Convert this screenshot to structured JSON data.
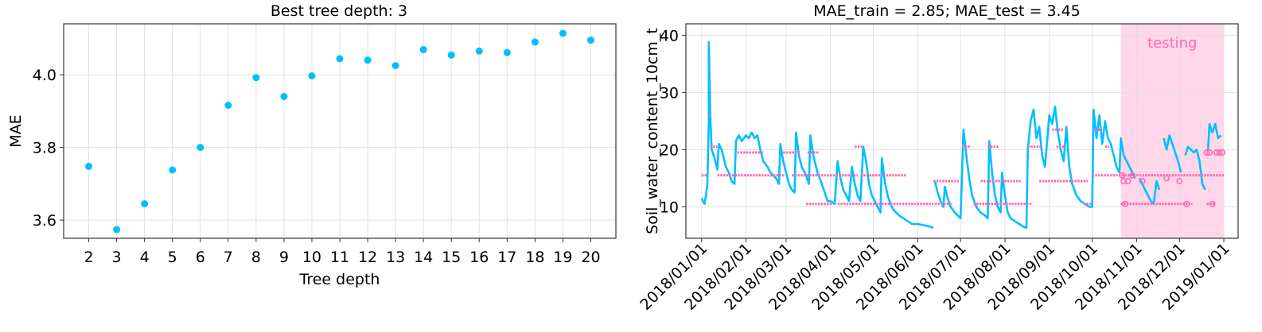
{
  "chart_data": [
    {
      "type": "scatter",
      "title": "Best tree depth: 3",
      "xlabel": "Tree depth",
      "ylabel": "MAE",
      "xlim": [
        1.1,
        20.9
      ],
      "ylim": [
        3.55,
        4.14
      ],
      "xticks": [
        2,
        3,
        4,
        5,
        6,
        7,
        8,
        9,
        10,
        11,
        12,
        13,
        14,
        15,
        16,
        17,
        18,
        19,
        20
      ],
      "yticks": [
        3.6,
        3.8,
        4.0
      ],
      "ytick_labels": [
        "3.6",
        "3.8",
        "4.0"
      ],
      "grid": true,
      "marker_color": "#00bfff",
      "series": [
        {
          "x": [
            2,
            3,
            4,
            5,
            6,
            7,
            8,
            9,
            10,
            11,
            12,
            13,
            14,
            15,
            16,
            17,
            18,
            19,
            20
          ],
          "y": [
            3.748,
            3.574,
            3.645,
            3.738,
            3.8,
            3.916,
            3.992,
            3.94,
            3.997,
            4.044,
            4.04,
            4.025,
            4.069,
            4.054,
            4.065,
            4.061,
            4.09,
            4.114,
            4.095
          ]
        }
      ]
    },
    {
      "type": "line",
      "title": "MAE_train = 2.85; MAE_test = 3.45",
      "xlabel": "",
      "ylabel": "Soil_water_content_10cm_t",
      "xlim": [
        "2017-12-21",
        "2019-01-11"
      ],
      "ylim": [
        4.5,
        42
      ],
      "yticks": [
        10,
        20,
        30,
        40
      ],
      "ytick_labels": [
        "10",
        "20",
        "30",
        "40"
      ],
      "xticks": [
        "2018-01-01",
        "2018-02-01",
        "2018-03-01",
        "2018-04-01",
        "2018-05-01",
        "2018-06-01",
        "2018-07-01",
        "2018-08-01",
        "2018-09-01",
        "2018-10-01",
        "2018-11-01",
        "2018-12-01",
        "2019-01-01"
      ],
      "xtick_labels": [
        "2018/01/01",
        "2018/02/01",
        "2018/03/01",
        "2018/04/01",
        "2018/05/01",
        "2018/06/01",
        "2018/07/01",
        "2018/08/01",
        "2018/09/01",
        "2018/10/01",
        "2018/11/01",
        "2018/12/01",
        "2019/01/01"
      ],
      "grid": true,
      "observed_color": "#00bfff",
      "predicted_color": "#ff69b4",
      "testing_region": {
        "start": "2018-10-21",
        "end": "2019-01-01",
        "label": "testing",
        "color": "#ffb6d5"
      },
      "observed_segments": [
        [
          [
            "2018-01-01",
            11.5
          ],
          [
            "2018-01-03",
            10.5
          ],
          [
            "2018-01-04",
            12
          ],
          [
            "2018-01-05",
            14
          ],
          [
            "2018-01-06",
            25
          ],
          [
            "2018-01-06",
            38.8
          ],
          [
            "2018-01-07",
            26
          ],
          [
            "2018-01-08",
            20
          ],
          [
            "2018-01-10",
            18.5
          ],
          [
            "2018-01-12",
            16.5
          ],
          [
            "2018-01-13",
            21
          ],
          [
            "2018-01-15",
            20
          ],
          [
            "2018-01-18",
            17
          ],
          [
            "2018-01-20",
            16
          ],
          [
            "2018-01-22",
            14.5
          ],
          [
            "2018-01-24",
            14
          ],
          [
            "2018-01-25",
            21.5
          ],
          [
            "2018-01-27",
            22.5
          ],
          [
            "2018-01-29",
            21.5
          ],
          [
            "2018-02-01",
            22.5
          ],
          [
            "2018-02-03",
            22
          ],
          [
            "2018-02-05",
            23
          ],
          [
            "2018-02-07",
            22
          ],
          [
            "2018-02-09",
            22.5
          ],
          [
            "2018-02-11",
            20
          ],
          [
            "2018-02-13",
            18
          ],
          [
            "2018-02-16",
            17
          ],
          [
            "2018-02-18",
            16
          ],
          [
            "2018-02-20",
            15.5
          ],
          [
            "2018-02-22",
            15
          ],
          [
            "2018-02-24",
            14
          ],
          [
            "2018-02-25",
            21
          ],
          [
            "2018-02-27",
            18
          ],
          [
            "2018-03-01",
            16
          ],
          [
            "2018-03-03",
            14
          ],
          [
            "2018-03-05",
            13
          ],
          [
            "2018-03-07",
            12.5
          ],
          [
            "2018-03-08",
            23
          ],
          [
            "2018-03-10",
            19
          ],
          [
            "2018-03-12",
            17
          ],
          [
            "2018-03-15",
            15.5
          ],
          [
            "2018-03-17",
            14
          ],
          [
            "2018-03-18",
            22.5
          ],
          [
            "2018-03-20",
            19
          ],
          [
            "2018-03-23",
            16
          ],
          [
            "2018-03-26",
            14
          ],
          [
            "2018-03-28",
            12.5
          ],
          [
            "2018-03-30",
            11
          ],
          [
            "2018-04-01",
            11
          ],
          [
            "2018-04-04",
            10.5
          ],
          [
            "2018-04-06",
            18
          ],
          [
            "2018-04-08",
            15
          ],
          [
            "2018-04-10",
            13
          ],
          [
            "2018-04-12",
            12
          ],
          [
            "2018-04-14",
            11
          ],
          [
            "2018-04-16",
            17
          ],
          [
            "2018-04-18",
            14
          ],
          [
            "2018-04-20",
            12
          ],
          [
            "2018-04-22",
            11
          ],
          [
            "2018-04-24",
            20.5
          ],
          [
            "2018-04-26",
            18
          ],
          [
            "2018-04-28",
            14
          ],
          [
            "2018-04-30",
            12
          ],
          [
            "2018-05-02",
            11
          ],
          [
            "2018-05-04",
            10
          ],
          [
            "2018-05-06",
            9
          ],
          [
            "2018-05-07",
            18.5
          ],
          [
            "2018-05-09",
            14.5
          ],
          [
            "2018-05-11",
            12
          ],
          [
            "2018-05-13",
            10.5
          ],
          [
            "2018-05-15",
            9.5
          ],
          [
            "2018-05-17",
            9
          ],
          [
            "2018-05-19",
            8.5
          ],
          [
            "2018-05-22",
            8
          ],
          [
            "2018-05-25",
            7.5
          ],
          [
            "2018-05-28",
            7
          ],
          [
            "2018-06-01",
            7
          ],
          [
            "2018-06-05",
            6.8
          ],
          [
            "2018-06-10",
            6.5
          ],
          [
            "2018-06-12",
            6.3
          ]
        ],
        [
          [
            "2018-06-13",
            14.5
          ],
          [
            "2018-06-15",
            12.5
          ],
          [
            "2018-06-17",
            11
          ],
          [
            "2018-06-19",
            10
          ],
          [
            "2018-06-20",
            13.5
          ],
          [
            "2018-06-22",
            11.5
          ],
          [
            "2018-06-24",
            10
          ],
          [
            "2018-06-27",
            9
          ],
          [
            "2018-06-29",
            8.5
          ],
          [
            "2018-07-01",
            8
          ],
          [
            "2018-07-03",
            23.5
          ],
          [
            "2018-07-05",
            19
          ],
          [
            "2018-07-07",
            15
          ],
          [
            "2018-07-09",
            12
          ],
          [
            "2018-07-12",
            10
          ],
          [
            "2018-07-15",
            9
          ],
          [
            "2018-07-18",
            8.5
          ],
          [
            "2018-07-20",
            8
          ],
          [
            "2018-07-21",
            21.5
          ],
          [
            "2018-07-23",
            16
          ],
          [
            "2018-07-25",
            12
          ],
          [
            "2018-07-27",
            10
          ],
          [
            "2018-07-29",
            9
          ],
          [
            "2018-07-30",
            16
          ],
          [
            "2018-08-01",
            12
          ],
          [
            "2018-08-03",
            9
          ],
          [
            "2018-08-05",
            8
          ],
          [
            "2018-08-08",
            7.5
          ],
          [
            "2018-08-11",
            7
          ],
          [
            "2018-08-14",
            6.5
          ],
          [
            "2018-08-16",
            6.3
          ],
          [
            "2018-08-17",
            20
          ],
          [
            "2018-08-19",
            25
          ],
          [
            "2018-08-21",
            27
          ],
          [
            "2018-08-23",
            22
          ],
          [
            "2018-08-25",
            24
          ],
          [
            "2018-08-27",
            19
          ],
          [
            "2018-08-29",
            17
          ],
          [
            "2018-09-01",
            26
          ],
          [
            "2018-09-03",
            24.5
          ],
          [
            "2018-09-05",
            27.5
          ],
          [
            "2018-09-07",
            23
          ],
          [
            "2018-09-09",
            20
          ],
          [
            "2018-09-11",
            18
          ],
          [
            "2018-09-13",
            24
          ],
          [
            "2018-09-15",
            17
          ],
          [
            "2018-09-17",
            14
          ],
          [
            "2018-09-20",
            12
          ],
          [
            "2018-09-23",
            11
          ],
          [
            "2018-09-26",
            10.5
          ],
          [
            "2018-09-29",
            10
          ],
          [
            "2018-10-01",
            10
          ],
          [
            "2018-10-02",
            27
          ],
          [
            "2018-10-04",
            22
          ],
          [
            "2018-10-06",
            26
          ],
          [
            "2018-10-08",
            21
          ],
          [
            "2018-10-10",
            25
          ],
          [
            "2018-10-12",
            22
          ],
          [
            "2018-10-14",
            21
          ],
          [
            "2018-10-16",
            19
          ],
          [
            "2018-10-18",
            17
          ],
          [
            "2018-10-20",
            16
          ],
          [
            "2018-10-21",
            22
          ],
          [
            "2018-10-23",
            19
          ],
          [
            "2018-10-25",
            18
          ],
          [
            "2018-10-27",
            17
          ],
          [
            "2018-10-29",
            16
          ],
          [
            "2018-10-31",
            15
          ]
        ],
        [
          [
            "2018-11-03",
            15
          ],
          [
            "2018-11-05",
            14
          ],
          [
            "2018-11-07",
            13
          ],
          [
            "2018-11-09",
            12
          ],
          [
            "2018-11-11",
            11
          ],
          [
            "2018-11-13",
            10.5
          ],
          [
            "2018-11-15",
            14.5
          ],
          [
            "2018-11-17",
            13
          ]
        ],
        [
          [
            "2018-11-20",
            22
          ],
          [
            "2018-11-22",
            20
          ],
          [
            "2018-11-24",
            22.5
          ],
          [
            "2018-11-26",
            21
          ],
          [
            "2018-11-28",
            19.5
          ],
          [
            "2018-11-30",
            18
          ],
          [
            "2018-12-02",
            16
          ]
        ],
        [
          [
            "2018-12-05",
            19
          ],
          [
            "2018-12-07",
            20.5
          ],
          [
            "2018-12-09",
            20
          ],
          [
            "2018-12-11",
            19.5
          ],
          [
            "2018-12-13",
            20
          ],
          [
            "2018-12-15",
            18
          ],
          [
            "2018-12-17",
            14
          ],
          [
            "2018-12-19",
            13
          ]
        ],
        [
          [
            "2018-12-21",
            20
          ],
          [
            "2018-12-22",
            24.5
          ],
          [
            "2018-12-24",
            23
          ],
          [
            "2018-12-26",
            24.5
          ],
          [
            "2018-12-28",
            22
          ],
          [
            "2018-12-30",
            22.5
          ]
        ]
      ],
      "predicted_lines": [
        {
          "y": 15.5,
          "ranges": [
            [
              "2018-01-01",
              "2018-01-05"
            ],
            [
              "2018-01-12",
              "2018-02-28"
            ],
            [
              "2018-03-05",
              "2018-04-20"
            ],
            [
              "2018-04-22",
              "2018-05-08"
            ],
            [
              "2018-05-10",
              "2018-05-24"
            ],
            [
              "2018-10-01",
              "2019-01-01"
            ]
          ]
        },
        {
          "y": 10.5,
          "ranges": [
            [
              "2018-03-15",
              "2018-04-02"
            ],
            [
              "2018-04-06",
              "2018-06-12"
            ],
            [
              "2018-06-13",
              "2018-06-25"
            ],
            [
              "2018-07-10",
              "2018-08-20"
            ],
            [
              "2018-09-25",
              "2018-10-01"
            ],
            [
              "2018-10-21",
              "2018-12-10"
            ],
            [
              "2018-12-20",
              "2018-12-26"
            ]
          ]
        },
        {
          "y": 19.5,
          "ranges": [
            [
              "2018-01-26",
              "2018-02-13"
            ],
            [
              "2018-02-27",
              "2018-03-11"
            ],
            [
              "2018-03-16",
              "2018-03-24"
            ]
          ]
        },
        {
          "y": 20.5,
          "ranges": [
            [
              "2018-01-07",
              "2018-01-12"
            ],
            [
              "2018-04-18",
              "2018-04-24"
            ],
            [
              "2018-07-02",
              "2018-07-08"
            ],
            [
              "2018-07-20",
              "2018-07-28"
            ],
            [
              "2018-08-17",
              "2018-08-27"
            ],
            [
              "2018-09-06",
              "2018-09-12"
            ],
            [
              "2018-10-10",
              "2018-10-13"
            ]
          ]
        },
        {
          "y": 14.5,
          "ranges": [
            [
              "2018-06-12",
              "2018-06-30"
            ],
            [
              "2018-07-15",
              "2018-08-12"
            ],
            [
              "2018-08-25",
              "2018-09-28"
            ]
          ]
        },
        {
          "y": 23.5,
          "ranges": [
            [
              "2018-09-03",
              "2018-09-11"
            ],
            [
              "2018-10-03",
              "2018-10-08"
            ]
          ]
        },
        {
          "y": 26.0,
          "ranges": [
            [
              "2018-01-06",
              "2018-01-07"
            ]
          ]
        },
        {
          "y": 38.3,
          "ranges": [
            [
              "2018-01-06",
              "2018-01-06"
            ]
          ]
        }
      ],
      "predicted_test_markers": [
        [
          "2018-10-22",
          15.5
        ],
        [
          "2018-10-23",
          14.5
        ],
        [
          "2018-10-24",
          10.5
        ],
        [
          "2018-10-26",
          14.5
        ],
        [
          "2018-10-29",
          15.5
        ],
        [
          "2018-11-05",
          14.5
        ],
        [
          "2018-11-22",
          15
        ],
        [
          "2018-12-01",
          14.5
        ],
        [
          "2018-12-06",
          10.5
        ],
        [
          "2018-12-20",
          19.5
        ],
        [
          "2018-12-22",
          19.5
        ],
        [
          "2018-12-24",
          10.5
        ],
        [
          "2018-12-27",
          19.5
        ],
        [
          "2018-12-29",
          19.5
        ],
        [
          "2018-12-31",
          19.5
        ]
      ]
    }
  ]
}
